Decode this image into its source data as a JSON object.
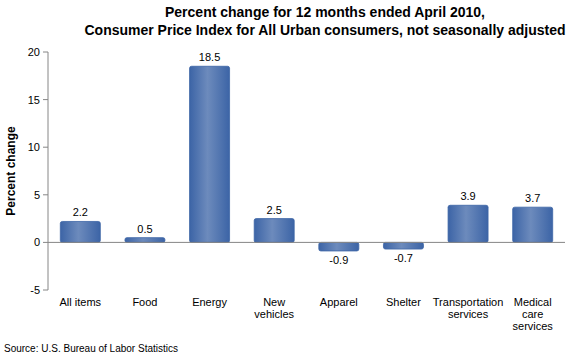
{
  "chart_data": {
    "type": "bar",
    "title": "Percent change for 12 months ended April 2010,\nConsumer Price Index for All Urban consumers, not seasonally adjusted",
    "y_label": "Percent change",
    "source": "Source: U.S. Bureau of Labor Statistics",
    "categories": [
      "All items",
      "Food",
      "Energy",
      "New vehicles",
      "Apparel",
      "Shelter",
      "Transportation services",
      "Medical care services"
    ],
    "values": [
      2.2,
      0.5,
      18.5,
      2.5,
      -0.9,
      -0.7,
      3.9,
      3.7
    ],
    "color": "#3c64a6",
    "ylim": [
      -5,
      20
    ],
    "yticks": [
      -5,
      0,
      5,
      10,
      15,
      20
    ],
    "grid": false,
    "data_labels": true
  }
}
